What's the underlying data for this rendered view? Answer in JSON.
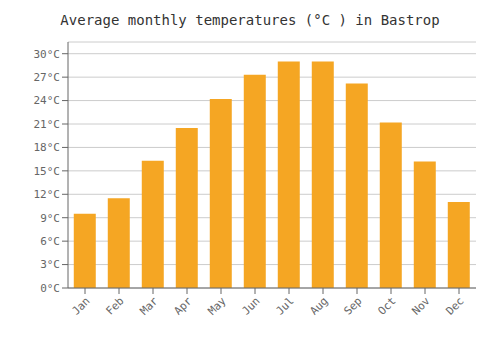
{
  "chart_data": {
    "type": "bar",
    "title": "Average monthly temperatures (°C ) in Bastrop",
    "categories": [
      "Jan",
      "Feb",
      "Mar",
      "Apr",
      "May",
      "Jun",
      "Jul",
      "Aug",
      "Sep",
      "Oct",
      "Nov",
      "Dec"
    ],
    "values": [
      9.5,
      11.5,
      16.3,
      20.5,
      24.2,
      27.3,
      29.0,
      29.0,
      26.2,
      21.2,
      16.2,
      11.0
    ],
    "color": "#F5A623",
    "ylim": [
      0,
      31.5
    ],
    "yticks": [
      {
        "value": 0,
        "label": "0°C"
      },
      {
        "value": 3,
        "label": "3°C"
      },
      {
        "value": 6,
        "label": "6°C"
      },
      {
        "value": 9,
        "label": "9°C"
      },
      {
        "value": 12,
        "label": "12°C"
      },
      {
        "value": 15,
        "label": "15°C"
      },
      {
        "value": 18,
        "label": "18°C"
      },
      {
        "value": 21,
        "label": "21°C"
      },
      {
        "value": 24,
        "label": "24°C"
      },
      {
        "value": 27,
        "label": "27°C"
      },
      {
        "value": 30,
        "label": "30°C"
      }
    ],
    "grid": true
  }
}
